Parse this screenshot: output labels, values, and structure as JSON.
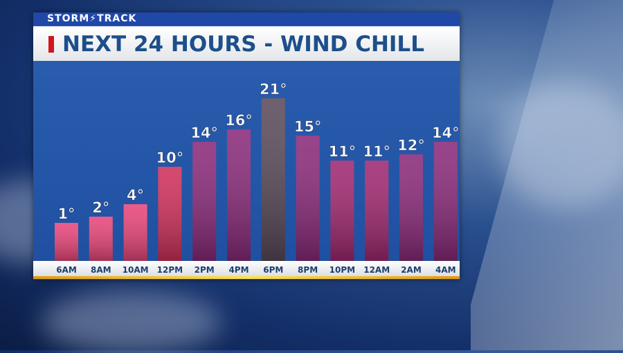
{
  "brand": "STORM⚡TRACK",
  "title": "NEXT 24 HOURS - WIND CHILL",
  "colors": {
    "accent_red": "#d0161b",
    "title_blue": "#1d4f8a",
    "panel_blue": "#2456a8",
    "gold": "#ffd23a"
  },
  "chart_data": {
    "type": "bar",
    "title": "NEXT 24 HOURS - WIND CHILL",
    "categories": [
      "6AM",
      "8AM",
      "10AM",
      "12PM",
      "2PM",
      "4PM",
      "6PM",
      "8PM",
      "10PM",
      "12AM",
      "2AM",
      "4AM"
    ],
    "values": [
      1,
      2,
      4,
      10,
      14,
      16,
      21,
      15,
      11,
      11,
      12,
      14
    ],
    "labels": [
      "1°",
      "2°",
      "4°",
      "10°",
      "14°",
      "16°",
      "21°",
      "15°",
      "11°",
      "11°",
      "12°",
      "14°"
    ],
    "unit": "°",
    "bar_colors": [
      "#e8457a",
      "#e8457a",
      "#e8457a",
      "#d0305a",
      "#8a2a7a",
      "#8a2a7a",
      "#5a4a5a",
      "#8a2a7a",
      "#a02870",
      "#a02870",
      "#8a2a7a",
      "#8a2a7a"
    ]
  }
}
